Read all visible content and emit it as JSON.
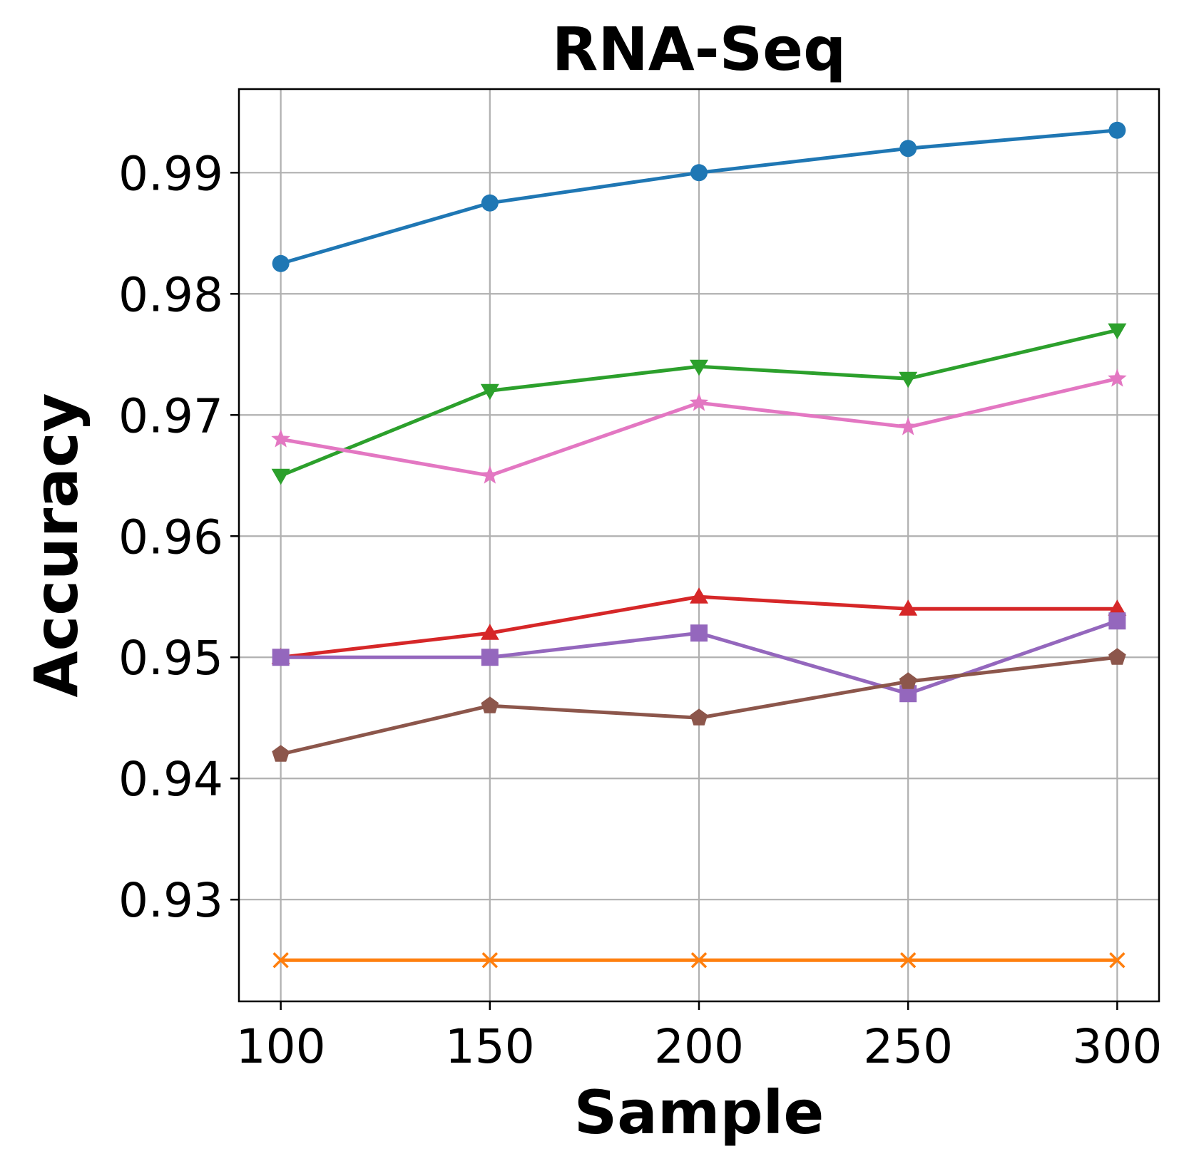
{
  "chart_data": {
    "type": "line",
    "title": "RNA-Seq",
    "xlabel": "Sample",
    "ylabel": "Accuracy",
    "x": [
      100,
      150,
      200,
      250,
      300
    ],
    "xticks": [
      "100",
      "150",
      "200",
      "250",
      "300"
    ],
    "yticks": [
      {
        "value": 0.93,
        "label": "0.93"
      },
      {
        "value": 0.94,
        "label": "0.94"
      },
      {
        "value": 0.95,
        "label": "0.95"
      },
      {
        "value": 0.96,
        "label": "0.96"
      },
      {
        "value": 0.97,
        "label": "0.97"
      },
      {
        "value": 0.98,
        "label": "0.98"
      },
      {
        "value": 0.99,
        "label": "0.99"
      }
    ],
    "xlim": [
      90,
      310
    ],
    "ylim": [
      0.9216,
      0.9969
    ],
    "grid": true,
    "series": [
      {
        "name": "series-blue",
        "color": "#1f77b4",
        "marker": "circle",
        "values": [
          0.9825,
          0.9875,
          0.99,
          0.992,
          0.9935
        ]
      },
      {
        "name": "series-orange",
        "color": "#ff7f0e",
        "marker": "x",
        "values": [
          0.925,
          0.925,
          0.925,
          0.925,
          0.925
        ]
      },
      {
        "name": "series-green",
        "color": "#2ca02c",
        "marker": "triangle-down",
        "values": [
          0.965,
          0.972,
          0.974,
          0.973,
          0.977
        ]
      },
      {
        "name": "series-red",
        "color": "#d62728",
        "marker": "triangle-up",
        "values": [
          0.95,
          0.952,
          0.955,
          0.954,
          0.954
        ]
      },
      {
        "name": "series-purple",
        "color": "#9467bd",
        "marker": "square",
        "values": [
          0.95,
          0.95,
          0.952,
          0.947,
          0.953
        ]
      },
      {
        "name": "series-brown",
        "color": "#8c564b",
        "marker": "pentagon",
        "values": [
          0.942,
          0.946,
          0.945,
          0.948,
          0.95
        ]
      },
      {
        "name": "series-pink",
        "color": "#e377c2",
        "marker": "star",
        "values": [
          0.968,
          0.965,
          0.971,
          0.969,
          0.973
        ]
      }
    ]
  }
}
